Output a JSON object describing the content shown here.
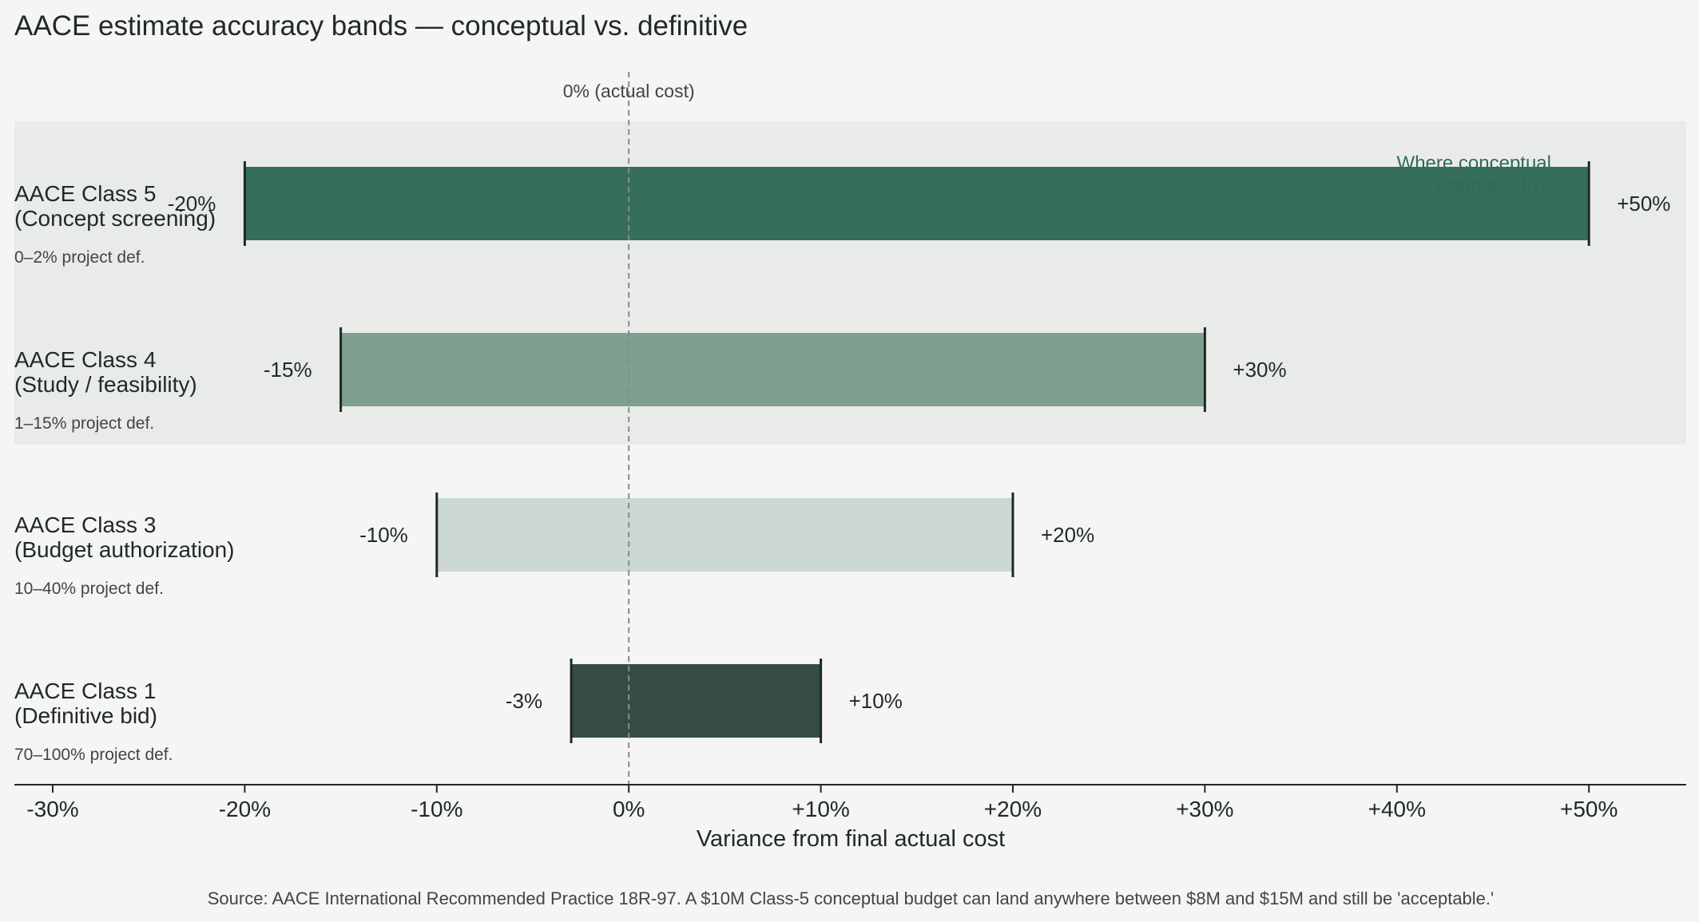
{
  "chart_data": {
    "type": "bar",
    "orientation": "horizontal-range",
    "title": "AACE estimate accuracy bands — conceptual vs. definitive",
    "xlabel": "Variance from final actual cost",
    "ylabel": "",
    "xlim": [
      -32,
      55
    ],
    "x_ticks": [
      -30,
      -20,
      -10,
      0,
      10,
      20,
      30,
      40,
      50
    ],
    "x_tick_labels": [
      "-30%",
      "-20%",
      "-10%",
      "0%",
      "+10%",
      "+20%",
      "+30%",
      "+40%",
      "+50%"
    ],
    "reference_line": {
      "value": 0,
      "label": "0%  (actual cost)"
    },
    "highlight_region": {
      "categories": [
        "AACE Class 5",
        "AACE Class 4"
      ],
      "label_line1": "Where conceptual",
      "label_line2": "estimates live"
    },
    "categories": [
      {
        "name": "AACE Class 5",
        "detail": "(Concept screening)",
        "definition": "0–2% project def.",
        "low": -20,
        "high": 50,
        "low_label": "-20%",
        "high_label": "+50%",
        "color": "#356e5c"
      },
      {
        "name": "AACE Class 4",
        "detail": "(Study / feasibility)",
        "definition": "1–15% project def.",
        "low": -15,
        "high": 30,
        "low_label": "-15%",
        "high_label": "+30%",
        "color": "#7ea18f"
      },
      {
        "name": "AACE Class 3",
        "detail": "(Budget authorization)",
        "definition": "10–40% project def.",
        "low": -10,
        "high": 20,
        "low_label": "-10%",
        "high_label": "+20%",
        "color": "#ccd9d2"
      },
      {
        "name": "AACE Class 1",
        "detail": "(Definitive bid)",
        "definition": "70–100% project def.",
        "low": -3,
        "high": 10,
        "low_label": "-3%",
        "high_label": "+10%",
        "color": "#354b43"
      }
    ],
    "source": "Source: AACE International Recommended Practice 18R-97. A $10M Class-5 conceptual budget can land anywhere between $8M and $15M and still be 'acceptable.'",
    "colors": {
      "background": "#f5f5f3",
      "highlight": "#e9ebe8",
      "axis": "#1e2a26",
      "reference_line": "#8a8a8a",
      "annotation": "#2f6b55"
    }
  }
}
